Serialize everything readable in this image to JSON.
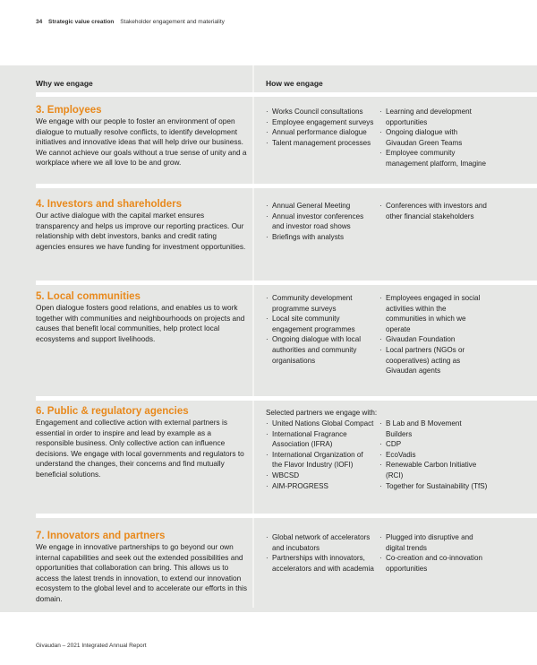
{
  "header": {
    "page_number": "34",
    "section": "Strategic value creation",
    "subsection": "Stakeholder engagement and materiality"
  },
  "columns": {
    "why": "Why we engage",
    "how": "How we engage"
  },
  "colors": {
    "heading_accent": "#e8891c",
    "band": "#e6e7e5"
  },
  "rows": [
    {
      "title": "3. Employees",
      "text": "We engage with our people to foster an environment of open dialogue to mutually resolve conflicts, to identify development initiatives and innovative ideas that will help drive our business. We cannot achieve our goals without a true sense of unity and a workplace where we all love to be and grow.",
      "intro": "",
      "col1": [
        "Works Council consultations",
        "Employee engagement surveys",
        "Annual performance dialogue",
        "Talent management processes"
      ],
      "col2": [
        "Learning and development opportunities",
        "Ongoing dialogue with Givaudan Green Teams",
        "Employee community management platform, Imagine"
      ]
    },
    {
      "title": "4. Investors and shareholders",
      "text": "Our active dialogue with the capital market ensures transparency and helps us improve our reporting practices. Our relationship with debt investors, banks and credit rating agencies ensures we have funding for investment opportunities.",
      "intro": "",
      "col1": [
        "Annual General Meeting",
        "Annual investor conferences and investor road shows",
        "Briefings with analysts"
      ],
      "col2": [
        "Conferences with investors and other financial stakeholders"
      ]
    },
    {
      "title": "5. Local communities",
      "text": "Open dialogue fosters good relations, and enables us to work together with communities and neighbourhoods on projects and causes that benefit local communities, help protect local ecosystems and support livelihoods.",
      "intro": "",
      "col1": [
        "Community development programme surveys",
        "Local site community engagement programmes",
        "Ongoing dialogue with local authorities and community organisations"
      ],
      "col2": [
        "Employees engaged in social activities within the communities in which we operate",
        "Givaudan Foundation",
        "Local partners (NGOs or cooperatives) acting as Givaudan agents"
      ]
    },
    {
      "title": "6. Public & regulatory agencies",
      "text": "Engagement and collective action with external partners is essential in order to inspire and lead by example as a responsible business. Only collective action can influence decisions. We engage with local governments and regulators to understand the changes, their concerns and find mutually beneficial solutions.",
      "intro": "Selected partners we engage with:",
      "col1": [
        "United Nations Global Compact",
        "International Fragrance Association (IFRA)",
        "International Organization of the Flavor Industry (IOFI)",
        "WBCSD",
        "AIM-PROGRESS"
      ],
      "col2": [
        "B Lab and B Movement Builders",
        "CDP",
        "EcoVadis",
        "Renewable Carbon Initiative (RCI)",
        "Together for Sustainability (TfS)"
      ]
    },
    {
      "title": "7. Innovators and partners",
      "text": "We engage in innovative partnerships to go beyond our own internal capabilities and seek out the extended possibilities and opportunities that collaboration can bring. This allows us to access the latest trends in innovation, to extend our innovation ecosystem to the global level and to accelerate our efforts in this domain.",
      "intro": "",
      "col1": [
        "Global network of accelerators and incubators",
        "Partnerships with innovators, accelerators and with academia"
      ],
      "col2": [
        "Plugged into disruptive and digital trends",
        "Co-creation and co-innovation opportunities"
      ]
    }
  ],
  "footer": "Givaudan – 2021 Integrated Annual Report"
}
